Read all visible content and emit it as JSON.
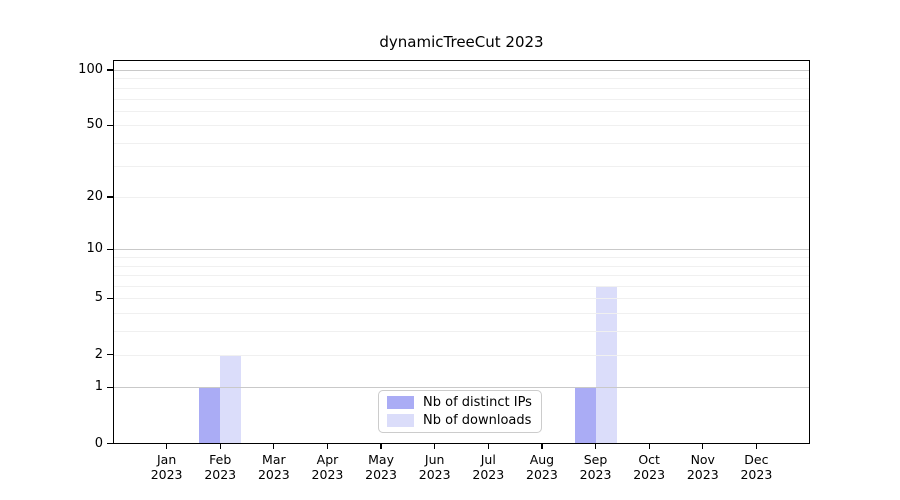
{
  "chart_data": {
    "type": "bar",
    "title": "dynamicTreeCut 2023",
    "categories": [
      {
        "month": "Jan",
        "year": "2023"
      },
      {
        "month": "Feb",
        "year": "2023"
      },
      {
        "month": "Mar",
        "year": "2023"
      },
      {
        "month": "Apr",
        "year": "2023"
      },
      {
        "month": "May",
        "year": "2023"
      },
      {
        "month": "Jun",
        "year": "2023"
      },
      {
        "month": "Jul",
        "year": "2023"
      },
      {
        "month": "Aug",
        "year": "2023"
      },
      {
        "month": "Sep",
        "year": "2023"
      },
      {
        "month": "Oct",
        "year": "2023"
      },
      {
        "month": "Nov",
        "year": "2023"
      },
      {
        "month": "Dec",
        "year": "2023"
      }
    ],
    "series": [
      {
        "name": "Nb of distinct IPs",
        "color": "#aaacf5",
        "values": [
          0,
          1,
          0,
          0,
          0,
          0,
          0,
          0,
          1,
          0,
          0,
          0
        ]
      },
      {
        "name": "Nb of downloads",
        "color": "#dbddfa",
        "values": [
          0,
          2,
          0,
          0,
          0,
          0,
          0,
          0,
          6,
          0,
          0,
          0
        ]
      }
    ],
    "y_axis": {
      "scale": "log1p",
      "tick_values": [
        0,
        1,
        2,
        5,
        10,
        20,
        50,
        100
      ],
      "major_gridlines": [
        1,
        10,
        100
      ],
      "minor_gridlines": [
        2,
        3,
        4,
        5,
        6,
        7,
        8,
        9,
        20,
        30,
        40,
        50,
        60,
        70,
        80,
        90
      ],
      "ylim": [
        0,
        113
      ]
    },
    "legend": {
      "position": "lower-center-inside"
    },
    "colors": {
      "grid_major": "#c9c9c9",
      "grid_minor": "#f0f0f0",
      "axis": "#000000",
      "text": "#000000",
      "legend_border": "#cccccc",
      "background": "#ffffff"
    }
  }
}
